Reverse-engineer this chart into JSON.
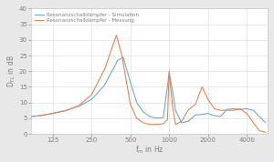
{
  "title": "",
  "xlabel": "f$_{m}$ in Hz",
  "ylabel": "D$_{TL}$ in dB",
  "xlim_log": [
    85,
    5800
  ],
  "ylim": [
    0,
    40
  ],
  "yticks": [
    0,
    5,
    10,
    15,
    20,
    25,
    30,
    35,
    40
  ],
  "xticks": [
    125,
    250,
    500,
    1000,
    2000,
    4000
  ],
  "legend_sim": "Resonanzschalldämpfer - Simulation",
  "legend_meas": "Resonanzschalldämpfer - Messung",
  "color_sim": "#6AAAD4",
  "color_meas": "#E8834E",
  "plot_bg": "#FFFFFF",
  "fig_bg": "#E8E8E8",
  "grid_color": "#D8D8D8",
  "spine_color": "#C0C0C0",
  "tick_color": "#808080",
  "sim_freq": [
    85,
    100,
    125,
    160,
    200,
    250,
    315,
    400,
    440,
    500,
    560,
    630,
    710,
    800,
    900,
    1000,
    1060,
    1120,
    1250,
    1400,
    1600,
    1800,
    2000,
    2240,
    2500,
    2800,
    3150,
    3550,
    4000,
    4500,
    5000,
    5600
  ],
  "sim_val": [
    5.5,
    5.8,
    6.5,
    7.5,
    8.8,
    11.0,
    15.5,
    23.5,
    24.5,
    16.5,
    10.0,
    7.0,
    5.5,
    5.0,
    5.2,
    19.5,
    14.0,
    7.5,
    3.5,
    4.0,
    6.0,
    6.2,
    6.5,
    5.8,
    5.5,
    7.8,
    8.0,
    7.8,
    8.0,
    7.5,
    5.5,
    3.5
  ],
  "meas_freq": [
    85,
    100,
    125,
    160,
    200,
    250,
    315,
    390,
    430,
    500,
    560,
    630,
    710,
    800,
    900,
    970,
    1000,
    1060,
    1120,
    1250,
    1400,
    1600,
    1800,
    2000,
    2240,
    2500,
    2800,
    3150,
    3550,
    4000,
    4500,
    5000,
    5600
  ],
  "meas_val": [
    5.5,
    5.8,
    6.5,
    7.5,
    9.0,
    12.5,
    20.5,
    31.5,
    25.0,
    9.5,
    5.0,
    3.5,
    3.0,
    3.0,
    3.2,
    4.5,
    20.0,
    9.0,
    3.0,
    4.0,
    7.5,
    9.5,
    15.0,
    11.0,
    8.0,
    7.5,
    7.5,
    7.5,
    8.0,
    6.5,
    3.5,
    1.0,
    0.5
  ]
}
